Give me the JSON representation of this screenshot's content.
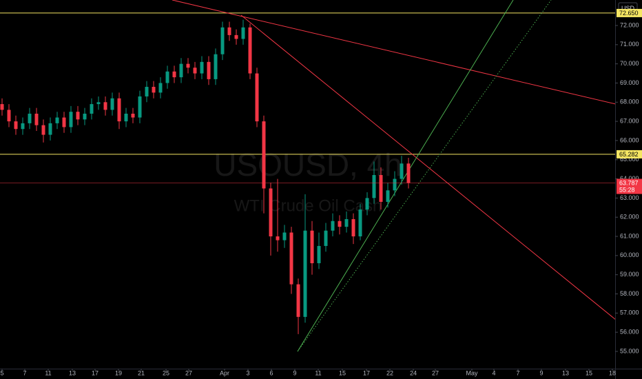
{
  "chart_data": {
    "type": "candlestick",
    "watermark": "USOUSD, 4h",
    "watermark_subtitle": "WTI Crude Oil Cash",
    "currency": "USD",
    "up_color": "#089981",
    "down_color": "#f23645",
    "open": [
      67.9,
      67.6,
      67.0,
      66.6,
      66.9,
      67.4,
      66.8,
      66.3,
      66.9,
      67.2,
      66.7,
      67.5,
      67.1,
      67.4,
      67.9,
      68.0,
      67.6,
      68.2,
      67.0,
      67.4,
      67.2,
      68.3,
      68.8,
      68.5,
      69.0,
      69.6,
      69.3,
      70.0,
      69.8,
      69.5,
      70.1,
      69.2,
      70.5,
      71.9,
      71.5,
      71.3,
      71.9,
      69.5,
      67.0,
      63.5,
      61.0,
      60.8,
      61.2,
      58.5,
      56.8,
      61.3,
      59.6,
      60.5,
      61.3,
      61.8,
      61.5,
      61.9,
      61.0,
      62.4,
      63.0,
      64.2,
      62.8,
      63.4,
      64.0,
      64.8
    ],
    "high": [
      68.2,
      67.9,
      67.3,
      67.2,
      67.7,
      67.7,
      67.1,
      67.2,
      67.5,
      67.5,
      67.8,
      67.8,
      67.7,
      68.2,
      68.3,
      68.3,
      68.5,
      68.5,
      67.7,
      67.7,
      68.6,
      69.1,
      69.1,
      69.3,
      69.9,
      69.9,
      70.3,
      70.3,
      70.1,
      70.4,
      70.4,
      70.8,
      72.2,
      72.2,
      71.8,
      72.3,
      72.1,
      69.8,
      67.3,
      63.8,
      64.0,
      61.6,
      61.5,
      58.8,
      63.2,
      61.8,
      61.2,
      61.7,
      62.2,
      62.1,
      62.3,
      62.2,
      62.7,
      63.3,
      64.9,
      64.6,
      63.8,
      64.4,
      65.2,
      65.1
    ],
    "low": [
      67.3,
      66.7,
      66.3,
      66.3,
      66.6,
      66.5,
      65.9,
      66.0,
      66.6,
      66.4,
      66.4,
      66.8,
      66.8,
      67.1,
      67.6,
      67.3,
      67.3,
      66.6,
      66.7,
      66.9,
      66.9,
      68.0,
      68.2,
      68.2,
      68.7,
      69.0,
      69.0,
      69.5,
      69.2,
      69.2,
      68.9,
      68.9,
      70.2,
      71.2,
      71.0,
      71.0,
      69.2,
      66.7,
      62.2,
      60.0,
      60.2,
      60.4,
      58.0,
      55.9,
      56.5,
      59.0,
      59.3,
      60.2,
      61.0,
      61.1,
      61.2,
      60.6,
      60.8,
      62.1,
      62.7,
      62.4,
      62.5,
      63.1,
      63.7,
      63.5
    ],
    "close": [
      67.6,
      67.0,
      66.6,
      66.9,
      67.4,
      66.8,
      66.3,
      66.9,
      67.2,
      66.7,
      67.5,
      67.1,
      67.4,
      67.9,
      68.0,
      67.6,
      68.2,
      67.0,
      67.4,
      67.2,
      68.3,
      68.8,
      68.5,
      69.0,
      69.6,
      69.3,
      70.0,
      69.8,
      69.5,
      70.1,
      69.2,
      70.5,
      71.9,
      71.5,
      71.3,
      71.9,
      69.5,
      67.0,
      63.5,
      61.0,
      60.8,
      61.2,
      58.5,
      56.8,
      61.3,
      59.6,
      60.5,
      61.3,
      61.8,
      61.5,
      61.9,
      61.0,
      62.4,
      63.0,
      64.2,
      62.8,
      63.4,
      64.0,
      64.8,
      63.787
    ],
    "last_price_label": "63.787",
    "countdown": "55:28",
    "xlim": [
      -0.3,
      89
    ],
    "xticks": [
      {
        "value": 0,
        "label": "5"
      },
      {
        "value": 3.3,
        "label": "7"
      },
      {
        "value": 6.7,
        "label": "11"
      },
      {
        "value": 10.2,
        "label": "13"
      },
      {
        "value": 13.5,
        "label": "17"
      },
      {
        "value": 16.9,
        "label": "19"
      },
      {
        "value": 20.2,
        "label": "21"
      },
      {
        "value": 23.8,
        "label": "25"
      },
      {
        "value": 27.1,
        "label": "27"
      },
      {
        "value": 32.3,
        "label": "Apr"
      },
      {
        "value": 35.7,
        "label": "3"
      },
      {
        "value": 39.1,
        "label": "6"
      },
      {
        "value": 42.5,
        "label": "9"
      },
      {
        "value": 45.9,
        "label": "11"
      },
      {
        "value": 49.4,
        "label": "15"
      },
      {
        "value": 52.9,
        "label": "17"
      },
      {
        "value": 56.3,
        "label": "22"
      },
      {
        "value": 59.7,
        "label": "24"
      },
      {
        "value": 62.9,
        "label": "27"
      },
      {
        "value": 68.2,
        "label": "May"
      },
      {
        "value": 71.4,
        "label": "4"
      },
      {
        "value": 74.9,
        "label": "7"
      },
      {
        "value": 78.3,
        "label": "9"
      },
      {
        "value": 81.8,
        "label": "13"
      },
      {
        "value": 85.2,
        "label": "15"
      },
      {
        "value": 88.6,
        "label": "18"
      }
    ],
    "ylim": [
      54.1,
      73.33
    ],
    "yticks": [
      {
        "value": 55,
        "label": "55.000"
      },
      {
        "value": 56,
        "label": "56.000"
      },
      {
        "value": 57,
        "label": "57.000"
      },
      {
        "value": 58,
        "label": "58.000"
      },
      {
        "value": 59,
        "label": "59.000"
      },
      {
        "value": 60,
        "label": "60.000"
      },
      {
        "value": 61,
        "label": "61.000"
      },
      {
        "value": 62,
        "label": "62.000"
      },
      {
        "value": 63,
        "label": "63.000"
      },
      {
        "value": 64,
        "label": "64.000"
      },
      {
        "value": 65,
        "label": "65.000"
      },
      {
        "value": 66,
        "label": "66.000"
      },
      {
        "value": 67,
        "label": "67.000"
      },
      {
        "value": 68,
        "label": "68.000"
      },
      {
        "value": 69,
        "label": "69.000"
      },
      {
        "value": 70,
        "label": "70.000"
      },
      {
        "value": 71,
        "label": "71.000"
      },
      {
        "value": 72,
        "label": "72.000"
      }
    ],
    "grid": false,
    "hlines": [
      {
        "value": 72.65,
        "label": "72.650",
        "color": "#f5e663"
      },
      {
        "value": 65.282,
        "label": "65.282",
        "color": "#f5e663"
      }
    ],
    "drawings": [
      {
        "color": "#f23645",
        "style": "solid",
        "x": [
          24.7,
          92.9
        ],
        "y": [
          73.33,
          67.58
        ]
      },
      {
        "color": "#f23645",
        "style": "solid",
        "x": [
          34.7,
          92.9
        ],
        "y": [
          72.54,
          55.54
        ]
      },
      {
        "color": "#4caf50",
        "style": "solid",
        "x": [
          42.9,
          74.2
        ],
        "y": [
          55.0,
          73.33
        ]
      },
      {
        "color": "#4caf50",
        "style": "dotted",
        "x": [
          42.9,
          79.7
        ],
        "y": [
          55.0,
          73.33
        ]
      }
    ]
  }
}
